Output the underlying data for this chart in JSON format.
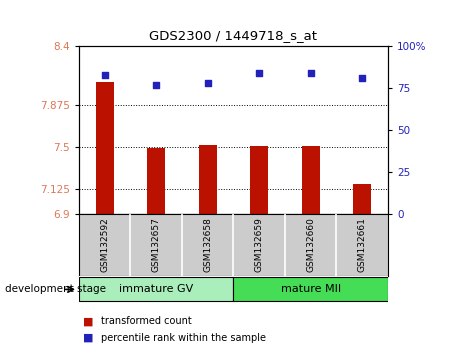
{
  "title": "GDS2300 / 1449718_s_at",
  "samples": [
    "GSM132592",
    "GSM132657",
    "GSM132658",
    "GSM132659",
    "GSM132660",
    "GSM132661"
  ],
  "bar_values": [
    8.08,
    7.49,
    7.52,
    7.51,
    7.51,
    7.17
  ],
  "percentile_values": [
    83,
    77,
    78,
    84,
    84,
    81
  ],
  "ylim_left": [
    6.9,
    8.4
  ],
  "ylim_right": [
    0,
    100
  ],
  "yticks_left": [
    6.9,
    7.125,
    7.5,
    7.875,
    8.4
  ],
  "ytick_labels_left": [
    "6.9",
    "7.125",
    "7.5",
    "7.875",
    "8.4"
  ],
  "yticks_right": [
    0,
    25,
    50,
    75,
    100
  ],
  "ytick_labels_right": [
    "0",
    "25",
    "50",
    "75",
    "100%"
  ],
  "hlines": [
    7.125,
    7.5,
    7.875
  ],
  "bar_color": "#bb1100",
  "dot_color": "#2222bb",
  "group1_label": "immature GV",
  "group1_indices": [
    0,
    1,
    2
  ],
  "group1_color": "#aaeebb",
  "group2_label": "mature MII",
  "group2_indices": [
    3,
    4,
    5
  ],
  "group2_color": "#44dd55",
  "stage_label": "development stage",
  "legend_bar": "transformed count",
  "legend_dot": "percentile rank within the sample",
  "tick_label_color_left": "#dd7755",
  "tick_label_color_right": "#2222bb",
  "bg_plot": "#ffffff",
  "bg_xticklabel": "#cccccc",
  "fig_bg": "#ffffff"
}
